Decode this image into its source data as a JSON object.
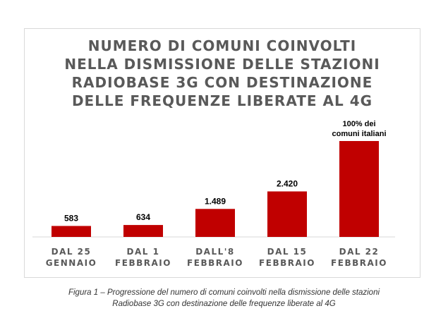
{
  "chart_data": {
    "type": "bar",
    "title_lines": [
      "NUMERO DI COMUNI COINVOLTI",
      "NELLA DISMISSIONE DELLE STAZIONI",
      "RADIOBASE 3G CON DESTINAZIONE",
      "DELLE FREQUENZE LIBERATE AL 4G"
    ],
    "categories": [
      [
        "DAL 25",
        "GENNAIO"
      ],
      [
        "DAL 1",
        "FEBBRAIO"
      ],
      [
        "DALL'8",
        "FEBBRAIO"
      ],
      [
        "DAL 15",
        "FEBBRAIO"
      ],
      [
        "DAL 22",
        "FEBBRAIO"
      ]
    ],
    "values": [
      583,
      634,
      1489,
      2420,
      5100
    ],
    "data_labels": [
      [
        "583"
      ],
      [
        "634"
      ],
      [
        "1.489"
      ],
      [
        "2.420"
      ],
      [
        "100% dei",
        "comuni italiani"
      ]
    ],
    "ylim": [
      0,
      5100
    ],
    "grid": false,
    "bar_color": "#c00000",
    "axis_color": "#d9d9d9",
    "category_color": "#595959"
  },
  "caption": {
    "line1": "Figura 1 – Progressione del numero di comuni coinvolti nella dismissione delle stazioni",
    "line2": "Radiobase 3G con destinazione delle frequenze liberate al 4G"
  }
}
